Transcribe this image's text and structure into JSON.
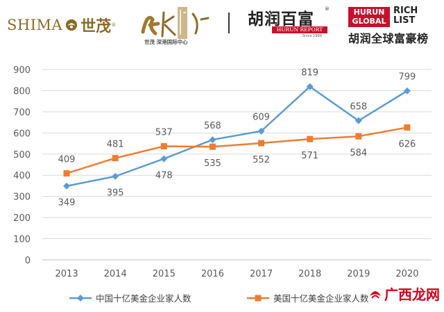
{
  "header": {
    "shimao_en": "SHIMA",
    "shimao_cn": "世茂",
    "calli_sub": "世茂 深港国际中心",
    "hurun_cn": "胡润百富",
    "hurun_report": "HURUN REPORT",
    "hurun_since": "Since 1999",
    "hurun_global_line1": "HURUN",
    "hurun_global_line2": "GLOBAL",
    "rich_line1": "RICH",
    "rich_line2": "LIST",
    "hurun_rich_cn": "胡润全球富豪榜"
  },
  "watermark": {
    "text": "广西龙网"
  },
  "chart_data": {
    "type": "line",
    "title": "",
    "xlabel": "",
    "ylabel": "",
    "categories": [
      "2013",
      "2014",
      "2015",
      "2016",
      "2017",
      "2018",
      "2019",
      "2020"
    ],
    "ylim": [
      0,
      900
    ],
    "yticks": [
      "0",
      "100",
      "200",
      "300",
      "400",
      "500",
      "600",
      "700",
      "800",
      "900"
    ],
    "grid": true,
    "legend_position": "bottom",
    "series": [
      {
        "name": "中国十亿美金企业家人数",
        "color": "#5b9bd5",
        "marker": "diamond",
        "values": [
          349,
          395,
          478,
          568,
          609,
          819,
          658,
          799
        ],
        "labels": [
          "349",
          "395",
          "478",
          "568",
          "609",
          "819",
          "658",
          "799"
        ],
        "label_pos": [
          "below",
          "below",
          "below",
          "above",
          "above",
          "above",
          "above",
          "above"
        ]
      },
      {
        "name": "美国十亿美金企业家人数",
        "color": "#ed7d31",
        "marker": "square",
        "values": [
          409,
          481,
          537,
          535,
          552,
          571,
          584,
          626
        ],
        "labels": [
          "409",
          "481",
          "537",
          "535",
          "552",
          "571",
          "584",
          "626"
        ],
        "label_pos": [
          "above",
          "above",
          "above",
          "below",
          "below",
          "below",
          "below",
          "below"
        ]
      }
    ]
  }
}
